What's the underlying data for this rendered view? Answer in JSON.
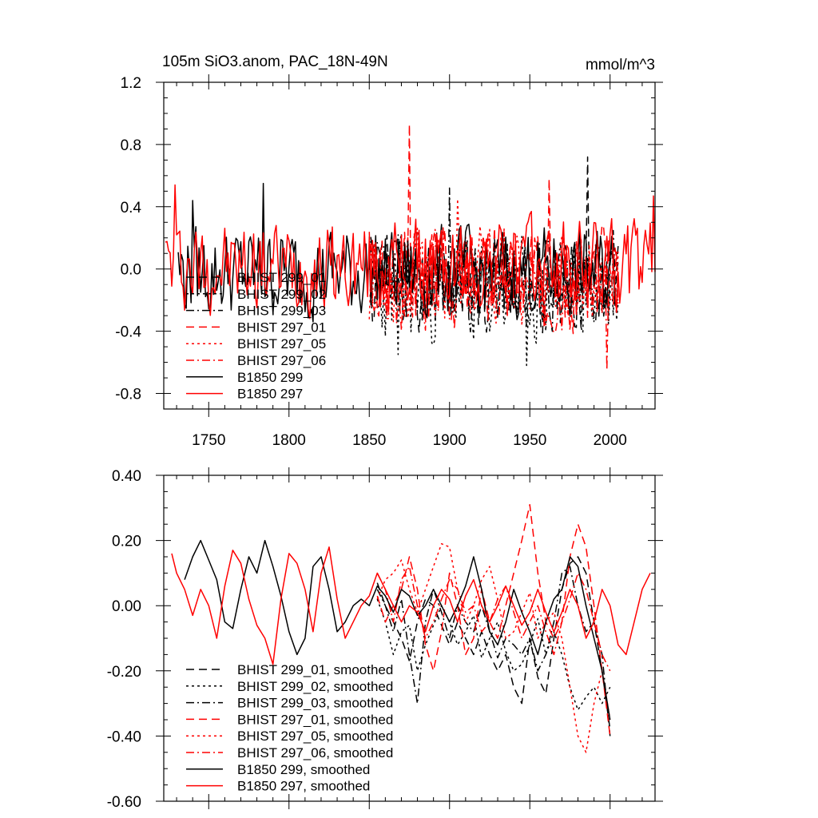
{
  "chart_data": [
    {
      "type": "line",
      "title": "105m SiO3.anom, PAC_18N-49N",
      "units": "mmol/m^3",
      "xlim": [
        1722,
        2028
      ],
      "ylim": [
        -0.9,
        1.2
      ],
      "xticks": [
        1750,
        1800,
        1850,
        1900,
        1950,
        2000
      ],
      "yticks": [
        -0.8,
        -0.4,
        0.0,
        0.4,
        0.8,
        1.2
      ],
      "ytick_labels": [
        "-0.8",
        "-0.4",
        "0.0",
        "0.4",
        "0.8",
        "1.2"
      ],
      "grid": false,
      "legend_position": "lower-left",
      "series": [
        {
          "name": "BHIST 299_01",
          "color": "#000000",
          "dash": "dash",
          "start": 1850,
          "end": 2005,
          "base": -0.1,
          "amp": 0.28,
          "seed": 11,
          "peaks": [
            [
              1986,
              0.72
            ]
          ]
        },
        {
          "name": "BHIST 299_02",
          "color": "#000000",
          "dash": "dot",
          "start": 1850,
          "end": 2005,
          "base": -0.15,
          "amp": 0.3,
          "seed": 23,
          "peaks": [
            [
              1868,
              -0.55
            ],
            [
              1948,
              -0.62
            ]
          ]
        },
        {
          "name": "BHIST 299_03",
          "color": "#000000",
          "dash": "dashdot",
          "start": 1850,
          "end": 2005,
          "base": -0.08,
          "amp": 0.27,
          "seed": 37,
          "peaks": [
            [
              1900,
              0.52
            ]
          ]
        },
        {
          "name": "BHIST 297_01",
          "color": "#ff0000",
          "dash": "dash",
          "start": 1850,
          "end": 2005,
          "base": -0.05,
          "amp": 0.3,
          "seed": 41,
          "peaks": [
            [
              1875,
              0.93
            ],
            [
              1962,
              0.58
            ]
          ]
        },
        {
          "name": "BHIST 297_05",
          "color": "#ff0000",
          "dash": "dot",
          "start": 1850,
          "end": 2005,
          "base": -0.05,
          "amp": 0.28,
          "seed": 53,
          "peaks": [
            [
              1905,
              0.45
            ]
          ]
        },
        {
          "name": "BHIST 297_06",
          "color": "#ff0000",
          "dash": "dashdot",
          "start": 1850,
          "end": 2005,
          "base": -0.07,
          "amp": 0.28,
          "seed": 67,
          "peaks": [
            [
              1998,
              -0.65
            ]
          ]
        },
        {
          "name": "B1850 299",
          "color": "#000000",
          "dash": "solid",
          "start": 1731,
          "end": 2005,
          "base": -0.02,
          "amp": 0.26,
          "seed": 79,
          "peaks": [
            [
              1784,
              0.55
            ],
            [
              1740,
              0.44
            ]
          ]
        },
        {
          "name": "B1850 297",
          "color": "#ff0000",
          "dash": "solid",
          "start": 1723,
          "end": 2028,
          "base": 0.02,
          "amp": 0.26,
          "seed": 97,
          "peaks": [
            [
              1729,
              0.54
            ],
            [
              2027,
              0.47
            ]
          ]
        }
      ]
    },
    {
      "type": "line",
      "title": "",
      "xlim": [
        1722,
        2028
      ],
      "ylim": [
        -0.6,
        0.4
      ],
      "xticks": [
        1750,
        1800,
        1850,
        1900,
        1950,
        2000
      ],
      "yticks": [
        -0.6,
        -0.4,
        -0.2,
        0.0,
        0.2,
        0.4
      ],
      "ytick_labels": [
        "-0.60",
        "-0.40",
        "-0.20",
        "0.00",
        "0.20",
        "0.40"
      ],
      "grid": false,
      "legend_position": "lower-left",
      "series": [
        {
          "name": "BHIST 299_01, smoothed",
          "color": "#000000",
          "dash": "dash",
          "x": [
            1855,
            1860,
            1865,
            1870,
            1875,
            1880,
            1885,
            1890,
            1895,
            1900,
            1905,
            1910,
            1915,
            1920,
            1925,
            1930,
            1935,
            1940,
            1945,
            1950,
            1955,
            1960,
            1965,
            1970,
            1975,
            1980,
            1985,
            1990,
            1995,
            2000
          ],
          "y": [
            0.07,
            0.0,
            -0.05,
            -0.1,
            -0.17,
            -0.05,
            0.02,
            0.0,
            -0.06,
            -0.12,
            -0.05,
            -0.1,
            -0.15,
            -0.08,
            -0.15,
            -0.2,
            -0.15,
            -0.25,
            -0.3,
            -0.1,
            -0.22,
            -0.27,
            -0.1,
            0.05,
            0.13,
            0.15,
            0.1,
            -0.05,
            -0.2,
            -0.38
          ]
        },
        {
          "name": "BHIST 299_02, smoothed",
          "color": "#000000",
          "dash": "dot",
          "x": [
            1855,
            1860,
            1865,
            1870,
            1875,
            1880,
            1885,
            1890,
            1895,
            1900,
            1905,
            1910,
            1915,
            1920,
            1925,
            1930,
            1935,
            1940,
            1945,
            1950,
            1955,
            1960,
            1965,
            1970,
            1975,
            1980,
            1985,
            1990,
            1995,
            2000
          ],
          "y": [
            0.02,
            -0.05,
            -0.15,
            -0.08,
            -0.06,
            -0.2,
            -0.12,
            -0.06,
            0.0,
            -0.05,
            -0.12,
            -0.08,
            -0.03,
            -0.16,
            -0.1,
            -0.05,
            -0.14,
            -0.2,
            -0.18,
            -0.12,
            -0.04,
            -0.15,
            -0.08,
            -0.15,
            -0.25,
            -0.32,
            -0.28,
            -0.25,
            -0.3,
            -0.25
          ]
        },
        {
          "name": "BHIST 299_03, smoothed",
          "color": "#000000",
          "dash": "dashdot",
          "x": [
            1855,
            1860,
            1865,
            1870,
            1875,
            1880,
            1885,
            1890,
            1895,
            1900,
            1905,
            1910,
            1915,
            1920,
            1925,
            1930,
            1935,
            1940,
            1945,
            1950,
            1955,
            1960,
            1965,
            1970,
            1975,
            1980,
            1985,
            1990,
            1995,
            2000
          ],
          "y": [
            0.05,
            0.0,
            -0.08,
            0.02,
            -0.15,
            -0.3,
            -0.05,
            0.05,
            -0.02,
            -0.1,
            0.0,
            -0.05,
            -0.08,
            0.0,
            -0.08,
            -0.16,
            -0.1,
            -0.12,
            -0.15,
            -0.1,
            -0.2,
            -0.15,
            -0.05,
            0.1,
            0.12,
            0.0,
            -0.08,
            -0.05,
            -0.15,
            -0.4
          ]
        },
        {
          "name": "BHIST 297_01, smoothed",
          "color": "#ff0000",
          "dash": "dash",
          "x": [
            1855,
            1860,
            1865,
            1870,
            1875,
            1880,
            1885,
            1890,
            1895,
            1900,
            1905,
            1910,
            1915,
            1920,
            1925,
            1930,
            1935,
            1940,
            1945,
            1950,
            1955,
            1960,
            1965,
            1970,
            1975,
            1980,
            1985,
            1990,
            1995,
            2000
          ],
          "y": [
            0.03,
            -0.05,
            0.0,
            0.05,
            0.15,
            0.05,
            -0.12,
            -0.2,
            -0.08,
            0.1,
            0.0,
            -0.15,
            -0.1,
            0.05,
            -0.05,
            -0.1,
            0.0,
            0.1,
            0.2,
            0.31,
            0.1,
            -0.05,
            -0.1,
            -0.05,
            0.15,
            0.25,
            0.18,
            0.0,
            -0.2,
            -0.4
          ]
        },
        {
          "name": "BHIST 297_05, smoothed",
          "color": "#ff0000",
          "dash": "dot",
          "x": [
            1855,
            1860,
            1865,
            1870,
            1875,
            1880,
            1885,
            1890,
            1895,
            1900,
            1905,
            1910,
            1915,
            1920,
            1925,
            1930,
            1935,
            1940,
            1945,
            1950,
            1955,
            1960,
            1965,
            1970,
            1975,
            1980,
            1985,
            1990,
            1995,
            2000
          ],
          "y": [
            0.02,
            0.08,
            0.1,
            0.14,
            0.05,
            -0.02,
            0.05,
            0.12,
            0.19,
            0.18,
            0.05,
            -0.05,
            0.0,
            0.08,
            0.12,
            0.02,
            -0.1,
            -0.08,
            -0.02,
            0.04,
            -0.1,
            -0.05,
            -0.02,
            -0.1,
            -0.25,
            -0.4,
            -0.45,
            -0.3,
            -0.2,
            -0.35
          ]
        },
        {
          "name": "BHIST 297_06, smoothed",
          "color": "#ff0000",
          "dash": "dashdot",
          "x": [
            1855,
            1860,
            1865,
            1870,
            1875,
            1880,
            1885,
            1890,
            1895,
            1900,
            1905,
            1910,
            1915,
            1920,
            1925,
            1930,
            1935,
            1940,
            1945,
            1950,
            1955,
            1960,
            1965,
            1970,
            1975,
            1980,
            1985,
            1990,
            1995,
            2000
          ],
          "y": [
            0.1,
            0.05,
            -0.05,
            0.08,
            0.12,
            0.0,
            -0.1,
            -0.05,
            0.02,
            0.08,
            0.05,
            -0.02,
            0.0,
            -0.08,
            -0.05,
            0.02,
            0.06,
            -0.02,
            -0.1,
            -0.05,
            0.0,
            -0.08,
            -0.15,
            -0.05,
            0.02,
            0.1,
            0.05,
            -0.05,
            -0.15,
            -0.2
          ]
        },
        {
          "name": "B1850 299, smoothed",
          "color": "#000000",
          "dash": "solid",
          "x": [
            1735,
            1740,
            1745,
            1750,
            1755,
            1760,
            1765,
            1770,
            1775,
            1780,
            1785,
            1790,
            1795,
            1800,
            1805,
            1810,
            1815,
            1820,
            1825,
            1830,
            1835,
            1840,
            1845,
            1850,
            1855,
            1860,
            1865,
            1870,
            1875,
            1880,
            1885,
            1890,
            1895,
            1900,
            1905,
            1910,
            1915,
            1920,
            1925,
            1930,
            1935,
            1940,
            1945,
            1950,
            1955,
            1960,
            1965,
            1970,
            1975,
            1980,
            1985,
            1990,
            1995,
            2000
          ],
          "y": [
            0.08,
            0.15,
            0.2,
            0.14,
            0.08,
            -0.05,
            -0.07,
            0.05,
            0.15,
            0.1,
            0.2,
            0.12,
            0.03,
            -0.08,
            -0.15,
            -0.1,
            0.12,
            0.15,
            0.05,
            -0.08,
            -0.05,
            0.0,
            0.02,
            0.0,
            0.06,
            0.03,
            -0.02,
            0.05,
            0.03,
            -0.03,
            0.0,
            0.05,
            0.0,
            -0.05,
            0.0,
            0.06,
            0.15,
            0.05,
            -0.08,
            -0.12,
            -0.05,
            0.05,
            -0.02,
            -0.08,
            -0.15,
            -0.05,
            0.02,
            0.05,
            0.15,
            0.12,
            0.0,
            -0.1,
            -0.2,
            -0.35
          ]
        },
        {
          "name": "B1850 297, smoothed",
          "color": "#ff0000",
          "dash": "solid",
          "x": [
            1727,
            1730,
            1735,
            1740,
            1745,
            1750,
            1755,
            1760,
            1765,
            1770,
            1775,
            1780,
            1785,
            1790,
            1795,
            1800,
            1805,
            1810,
            1815,
            1820,
            1825,
            1830,
            1835,
            1840,
            1845,
            1850,
            1855,
            1860,
            1865,
            1870,
            1875,
            1880,
            1885,
            1890,
            1895,
            1900,
            1905,
            1910,
            1915,
            1920,
            1925,
            1930,
            1935,
            1940,
            1945,
            1950,
            1955,
            1960,
            1965,
            1970,
            1975,
            1980,
            1985,
            1990,
            1995,
            2000,
            2005,
            2010,
            2015,
            2020,
            2025
          ],
          "y": [
            0.16,
            0.1,
            0.05,
            -0.03,
            0.05,
            0.0,
            -0.1,
            0.06,
            0.17,
            0.13,
            0.02,
            -0.06,
            -0.1,
            -0.18,
            0.02,
            0.16,
            0.13,
            0.05,
            -0.08,
            0.1,
            0.18,
            0.02,
            -0.1,
            -0.05,
            0.0,
            0.03,
            0.1,
            0.05,
            0.0,
            -0.05,
            0.0,
            -0.02,
            -0.08,
            0.0,
            0.05,
            0.02,
            -0.05,
            0.03,
            0.08,
            0.0,
            -0.05,
            0.0,
            0.06,
            0.0,
            -0.06,
            -0.02,
            0.05,
            -0.02,
            -0.08,
            -0.02,
            0.05,
            0.0,
            -0.1,
            -0.05,
            0.05,
            0.0,
            -0.12,
            -0.15,
            -0.05,
            0.05,
            0.1
          ]
        }
      ]
    }
  ]
}
